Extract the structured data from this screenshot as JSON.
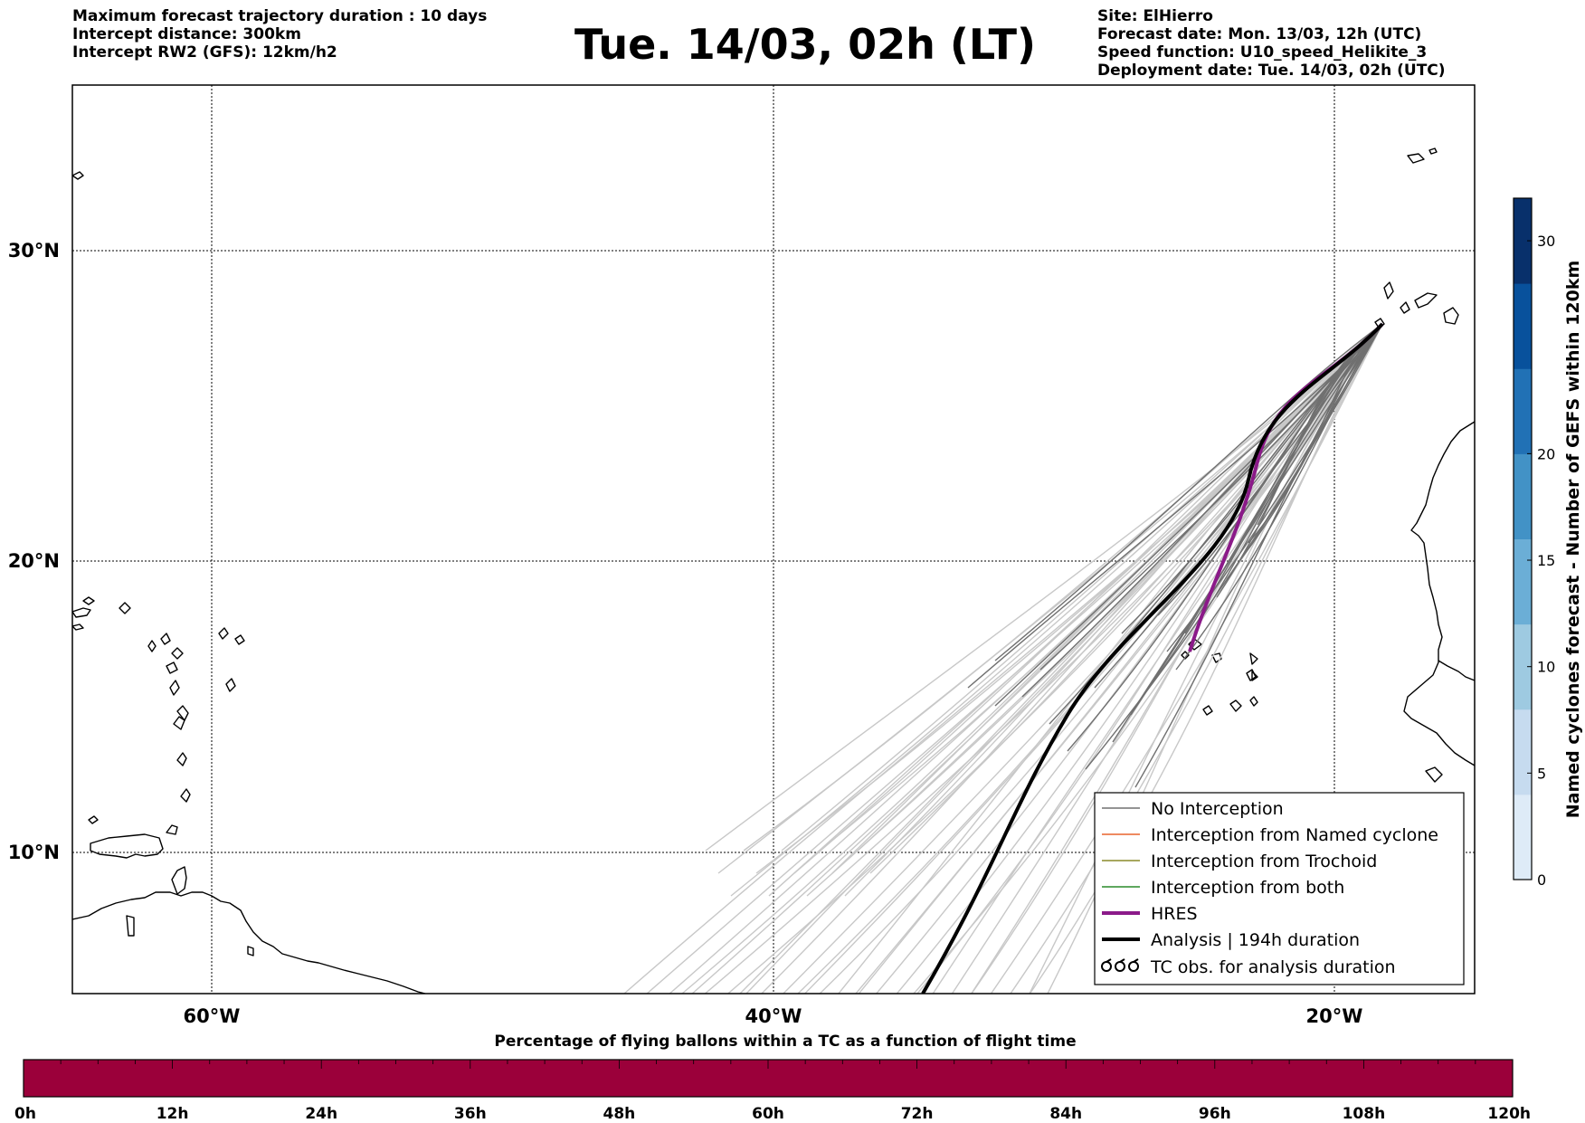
{
  "header": {
    "info_left": [
      "Maximum forecast trajectory duration : 10 days",
      "Intercept distance: 300km",
      "Intercept RW2 (GFS):  12km/h2"
    ],
    "title": "Tue. 14/03, 02h (LT)",
    "info_right": [
      "Site: ElHierro",
      "Forecast date: Mon. 13/03, 12h (UTC)",
      "Speed function: U10_speed_Helikite_3",
      "Deployment date: Tue. 14/03, 02h (UTC)"
    ]
  },
  "map": {
    "lon_range": [
      -65,
      -15
    ],
    "lat_range": [
      5,
      34.2
    ],
    "lat_labels": [
      "30°N",
      "20°N",
      "10°N"
    ],
    "lat_values": [
      30,
      20,
      10
    ],
    "lon_labels": [
      "60°W",
      "40°W",
      "20°W"
    ],
    "lon_values": [
      -60,
      -40,
      -20
    ],
    "colors": {
      "no_interception": "#707070",
      "named_cyclone": "#e8632b",
      "trochoid": "#8a8a2a",
      "both": "#2a8a2a",
      "hres": "#8b1a89",
      "analysis": "#000000",
      "ensemble_faint": "#c8c8c8"
    }
  },
  "legend": {
    "items": [
      {
        "label": "No Interception",
        "color": "#707070",
        "kind": "thin"
      },
      {
        "label": "Interception from Named cyclone",
        "color": "#e8632b",
        "kind": "thin"
      },
      {
        "label": "Interception from Trochoid",
        "color": "#8a8a2a",
        "kind": "thin"
      },
      {
        "label": "Interception from both",
        "color": "#2a8a2a",
        "kind": "thin"
      },
      {
        "label": "HRES",
        "color": "#8b1a89",
        "kind": "thick"
      },
      {
        "label": "Analysis | 194h duration",
        "color": "#000000",
        "kind": "thick"
      },
      {
        "label": "TC obs. for analysis duration",
        "color": "#000000",
        "kind": "tc"
      }
    ]
  },
  "colorbar": {
    "label": "Named cyclones forecast - Number of GEFS within 120km",
    "ticks": [
      "0",
      "5",
      "10",
      "15",
      "20",
      "30"
    ],
    "tick_values": [
      0,
      5,
      10,
      15,
      20,
      30
    ],
    "max": 32,
    "colors": [
      "#deebf7",
      "#c6dbef",
      "#9ecae1",
      "#6baed6",
      "#4292c6",
      "#2171b5",
      "#08519c",
      "#08306b"
    ]
  },
  "timeline": {
    "title": "Percentage of flying ballons within a TC as a function of flight time",
    "ticks": [
      "0h",
      "12h",
      "24h",
      "36h",
      "48h",
      "60h",
      "72h",
      "84h",
      "96h",
      "108h",
      "120h"
    ],
    "bar_color": "#9b003a"
  }
}
